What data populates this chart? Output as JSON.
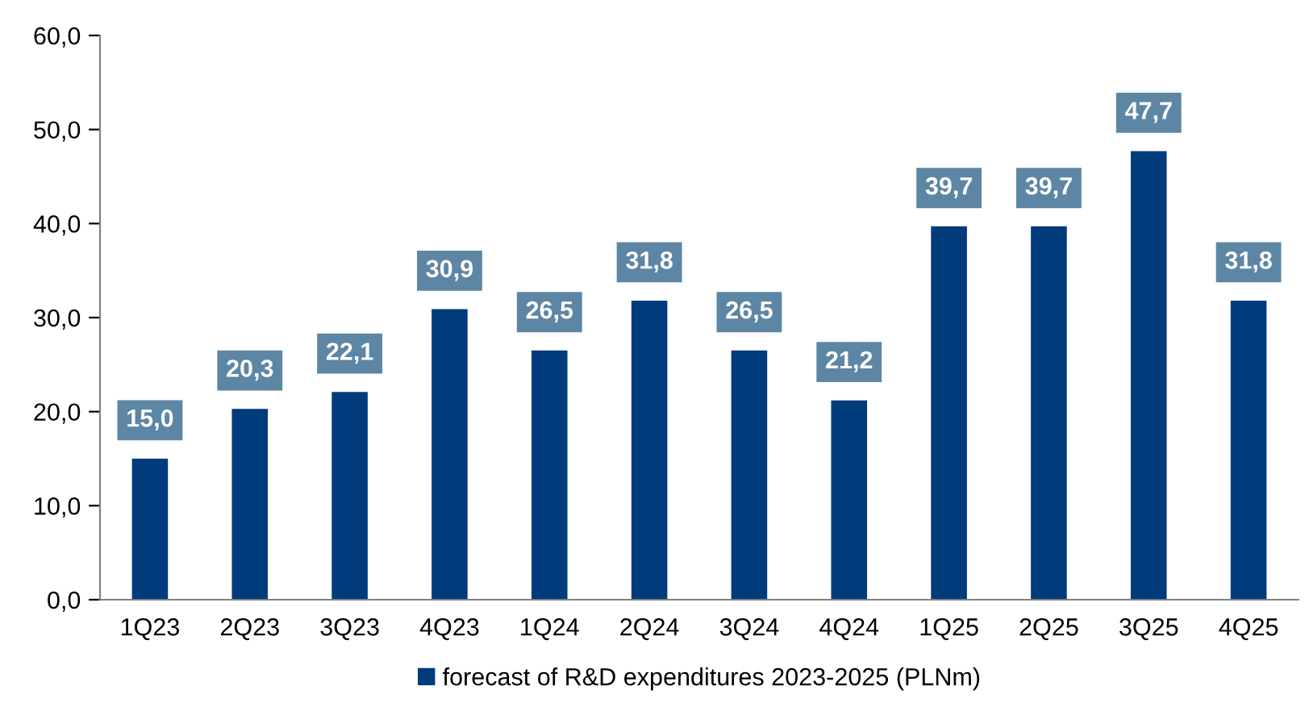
{
  "chart_data": {
    "type": "bar",
    "categories": [
      "1Q23",
      "2Q23",
      "3Q23",
      "4Q23",
      "1Q24",
      "2Q24",
      "3Q24",
      "4Q24",
      "1Q25",
      "2Q25",
      "3Q25",
      "4Q25"
    ],
    "series": [
      {
        "name": "forecast of R&D expenditures 2023-2025 (PLNm)",
        "color": "#003b7c",
        "values": [
          15.0,
          20.3,
          22.1,
          30.9,
          26.5,
          31.8,
          26.5,
          21.2,
          39.7,
          39.7,
          47.7,
          31.8
        ],
        "value_labels": [
          "15,0",
          "20,3",
          "22,1",
          "30,9",
          "26,5",
          "31,8",
          "26,5",
          "21,2",
          "39,7",
          "39,7",
          "47,7",
          "31,8"
        ]
      }
    ],
    "ylim": [
      0,
      60
    ],
    "yticks": [
      {
        "value": 0,
        "label": "0,0"
      },
      {
        "value": 10,
        "label": "10,0"
      },
      {
        "value": 20,
        "label": "20,0"
      },
      {
        "value": 30,
        "label": "30,0"
      },
      {
        "value": 40,
        "label": "40,0"
      },
      {
        "value": 50,
        "label": "50,0"
      },
      {
        "value": 60,
        "label": "60,0"
      }
    ],
    "grid": false,
    "legend": "bottom"
  }
}
